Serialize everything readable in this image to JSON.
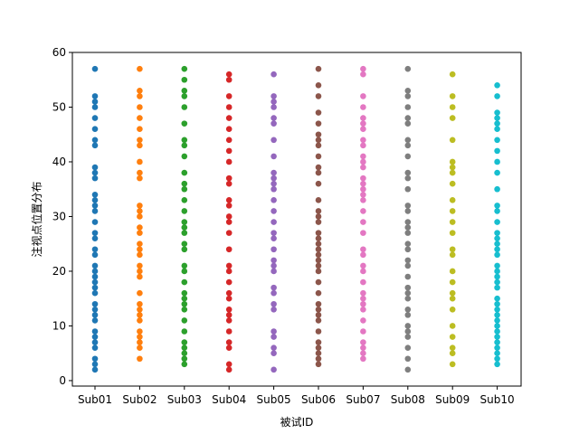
{
  "chart_data": {
    "type": "scatter",
    "title": "",
    "xlabel": "被试ID",
    "ylabel": "注视点位置分布",
    "categories": [
      "Sub01",
      "Sub02",
      "Sub03",
      "Sub04",
      "Sub05",
      "Sub06",
      "Sub07",
      "Sub08",
      "Sub09",
      "Sub10"
    ],
    "ylim": [
      -1,
      60
    ],
    "yticks": [
      0,
      10,
      20,
      30,
      40,
      50,
      60
    ],
    "grid": false,
    "legend": "none",
    "series": [
      {
        "color": "#1f77b4",
        "values": [
          2,
          3,
          4,
          6,
          7,
          8,
          9,
          11,
          12,
          13,
          14,
          16,
          17,
          18,
          19,
          20,
          21,
          23,
          24,
          26,
          27,
          29,
          31,
          32,
          33,
          34,
          37,
          38,
          39,
          43,
          44,
          46,
          48,
          50,
          51,
          52,
          57
        ]
      },
      {
        "color": "#ff7f0e",
        "values": [
          4,
          6,
          7,
          8,
          9,
          11,
          12,
          13,
          14,
          16,
          19,
          20,
          21,
          23,
          24,
          25,
          27,
          28,
          30,
          31,
          32,
          37,
          38,
          40,
          43,
          44,
          46,
          48,
          50,
          52,
          53,
          57
        ]
      },
      {
        "color": "#2ca02c",
        "values": [
          3,
          4,
          5,
          6,
          7,
          9,
          11,
          13,
          14,
          15,
          16,
          18,
          20,
          21,
          24,
          25,
          27,
          28,
          29,
          31,
          33,
          35,
          36,
          38,
          41,
          43,
          44,
          47,
          50,
          52,
          53,
          55,
          57
        ]
      },
      {
        "color": "#d62728",
        "values": [
          2,
          3,
          6,
          7,
          9,
          11,
          12,
          13,
          15,
          16,
          18,
          20,
          21,
          24,
          27,
          29,
          30,
          32,
          33,
          36,
          37,
          40,
          42,
          44,
          46,
          48,
          50,
          52,
          55,
          56
        ]
      },
      {
        "color": "#9467bd",
        "values": [
          2,
          5,
          6,
          8,
          9,
          13,
          14,
          16,
          17,
          20,
          21,
          22,
          24,
          26,
          27,
          29,
          31,
          33,
          35,
          36,
          37,
          38,
          41,
          44,
          47,
          48,
          50,
          51,
          52,
          56
        ]
      },
      {
        "color": "#8c564b",
        "values": [
          3,
          4,
          5,
          6,
          7,
          9,
          11,
          12,
          13,
          14,
          16,
          18,
          20,
          21,
          22,
          23,
          24,
          25,
          26,
          27,
          29,
          30,
          31,
          33,
          36,
          38,
          39,
          41,
          43,
          44,
          45,
          47,
          49,
          52,
          54,
          57
        ]
      },
      {
        "color": "#e377c2",
        "values": [
          4,
          5,
          6,
          7,
          9,
          11,
          13,
          14,
          15,
          16,
          18,
          20,
          21,
          23,
          24,
          27,
          29,
          31,
          33,
          34,
          35,
          36,
          37,
          39,
          40,
          41,
          43,
          44,
          46,
          47,
          48,
          50,
          52,
          56,
          57
        ]
      },
      {
        "color": "#7f7f7f",
        "values": [
          2,
          4,
          6,
          8,
          9,
          10,
          12,
          13,
          15,
          16,
          17,
          19,
          21,
          22,
          24,
          25,
          27,
          28,
          29,
          31,
          32,
          35,
          37,
          38,
          41,
          43,
          44,
          47,
          48,
          50,
          52,
          53,
          57
        ]
      },
      {
        "color": "#bcbd22",
        "values": [
          3,
          5,
          6,
          8,
          10,
          13,
          15,
          16,
          18,
          20,
          23,
          24,
          27,
          29,
          31,
          33,
          36,
          38,
          39,
          40,
          44,
          48,
          50,
          52,
          56
        ]
      },
      {
        "color": "#17becf",
        "values": [
          3,
          4,
          5,
          6,
          7,
          8,
          9,
          10,
          11,
          12,
          13,
          14,
          15,
          17,
          18,
          19,
          20,
          21,
          23,
          24,
          25,
          26,
          27,
          29,
          31,
          32,
          35,
          38,
          40,
          42,
          44,
          46,
          47,
          48,
          49,
          52,
          54
        ]
      }
    ]
  }
}
